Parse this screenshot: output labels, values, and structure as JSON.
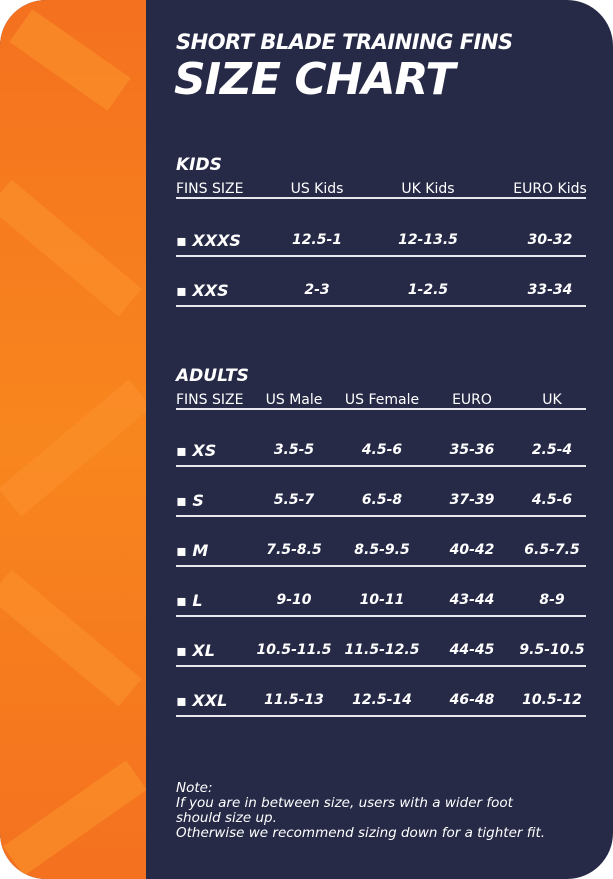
{
  "header": {
    "subtitle": "SHORT BLADE TRAINING FINS",
    "title": "SIZE CHART"
  },
  "colors": {
    "accent": "#f57a1f",
    "background": "#262a47",
    "text": "#ffffff"
  },
  "kids": {
    "title": "KIDS",
    "columns": [
      "FINS SIZE",
      "US Kids",
      "UK Kids",
      "EURO Kids"
    ],
    "rows": [
      {
        "size": "▪ XXXS",
        "values": [
          "12.5-1",
          "12-13.5",
          "30-32"
        ]
      },
      {
        "size": "▪ XXS",
        "values": [
          "2-3",
          "1-2.5",
          "33-34"
        ]
      }
    ]
  },
  "adults": {
    "title": "ADULTS",
    "columns": [
      "FINS SIZE",
      "US Male",
      "US Female",
      "EURO",
      "UK"
    ],
    "rows": [
      {
        "size": "▪ XS",
        "values": [
          "3.5-5",
          "4.5-6",
          "35-36",
          "2.5-4"
        ]
      },
      {
        "size": "▪ S",
        "values": [
          "5.5-7",
          "6.5-8",
          "37-39",
          "4.5-6"
        ]
      },
      {
        "size": "▪ M",
        "values": [
          "7.5-8.5",
          "8.5-9.5",
          "40-42",
          "6.5-7.5"
        ]
      },
      {
        "size": "▪ L",
        "values": [
          "9-10",
          "10-11",
          "43-44",
          "8-9"
        ]
      },
      {
        "size": "▪ XL",
        "values": [
          "10.5-11.5",
          "11.5-12.5",
          "44-45",
          "9.5-10.5"
        ]
      },
      {
        "size": "▪ XXL",
        "values": [
          "11.5-13",
          "12.5-14",
          "46-48",
          "10.5-12"
        ]
      }
    ]
  },
  "note": {
    "label": "Note:",
    "lines": [
      "If you are in between size, users with a wider foot",
      "should size up.",
      "Otherwise we recommend sizing down for a tighter fit."
    ]
  }
}
